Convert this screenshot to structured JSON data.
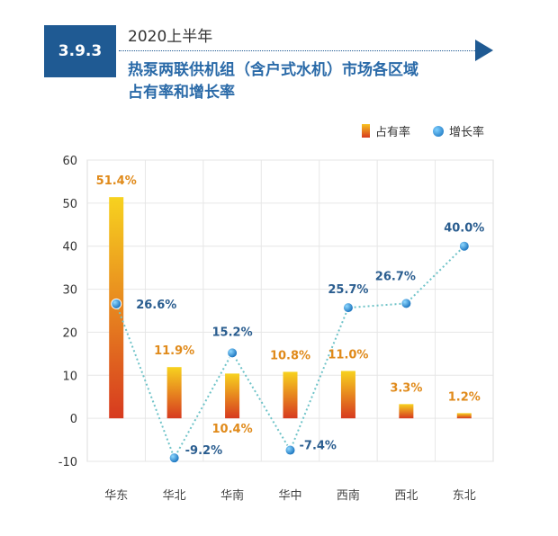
{
  "header": {
    "section": "3.9.3",
    "year": "2020上半年",
    "title_line1": "热泵两联供机组（含户式水机）市场各区域",
    "title_line2": "占有率和增长率"
  },
  "legend": {
    "share": "占有率",
    "growth": "增长率"
  },
  "chart_data": {
    "type": "bar",
    "categories": [
      "华东",
      "华北",
      "华南",
      "华中",
      "西南",
      "西北",
      "东北"
    ],
    "series": [
      {
        "name": "占有率",
        "type": "bar",
        "values": [
          51.4,
          11.9,
          10.4,
          10.8,
          11.0,
          3.3,
          1.2
        ],
        "labels": [
          "51.4%",
          "11.9%",
          "10.4%",
          "10.8%",
          "11.0%",
          "3.3%",
          "1.2%"
        ]
      },
      {
        "name": "增长率",
        "type": "line",
        "values": [
          26.6,
          -9.2,
          15.2,
          -7.4,
          25.7,
          26.7,
          40.0
        ],
        "labels": [
          "26.6%",
          "-9.2%",
          "15.2%",
          "-7.4%",
          "25.7%",
          "26.7%",
          "40.0%"
        ]
      }
    ],
    "yticks": [
      "-10",
      "0",
      "10",
      "20",
      "30",
      "40",
      "50",
      "60"
    ],
    "ylim": [
      -10,
      60
    ],
    "grid": true,
    "legend_position": "top-right",
    "colors": {
      "bar_top": "#f7d21f",
      "bar_bottom": "#d73a1f",
      "line": "#6fc3c8",
      "dot": "#1a7fc9"
    }
  }
}
